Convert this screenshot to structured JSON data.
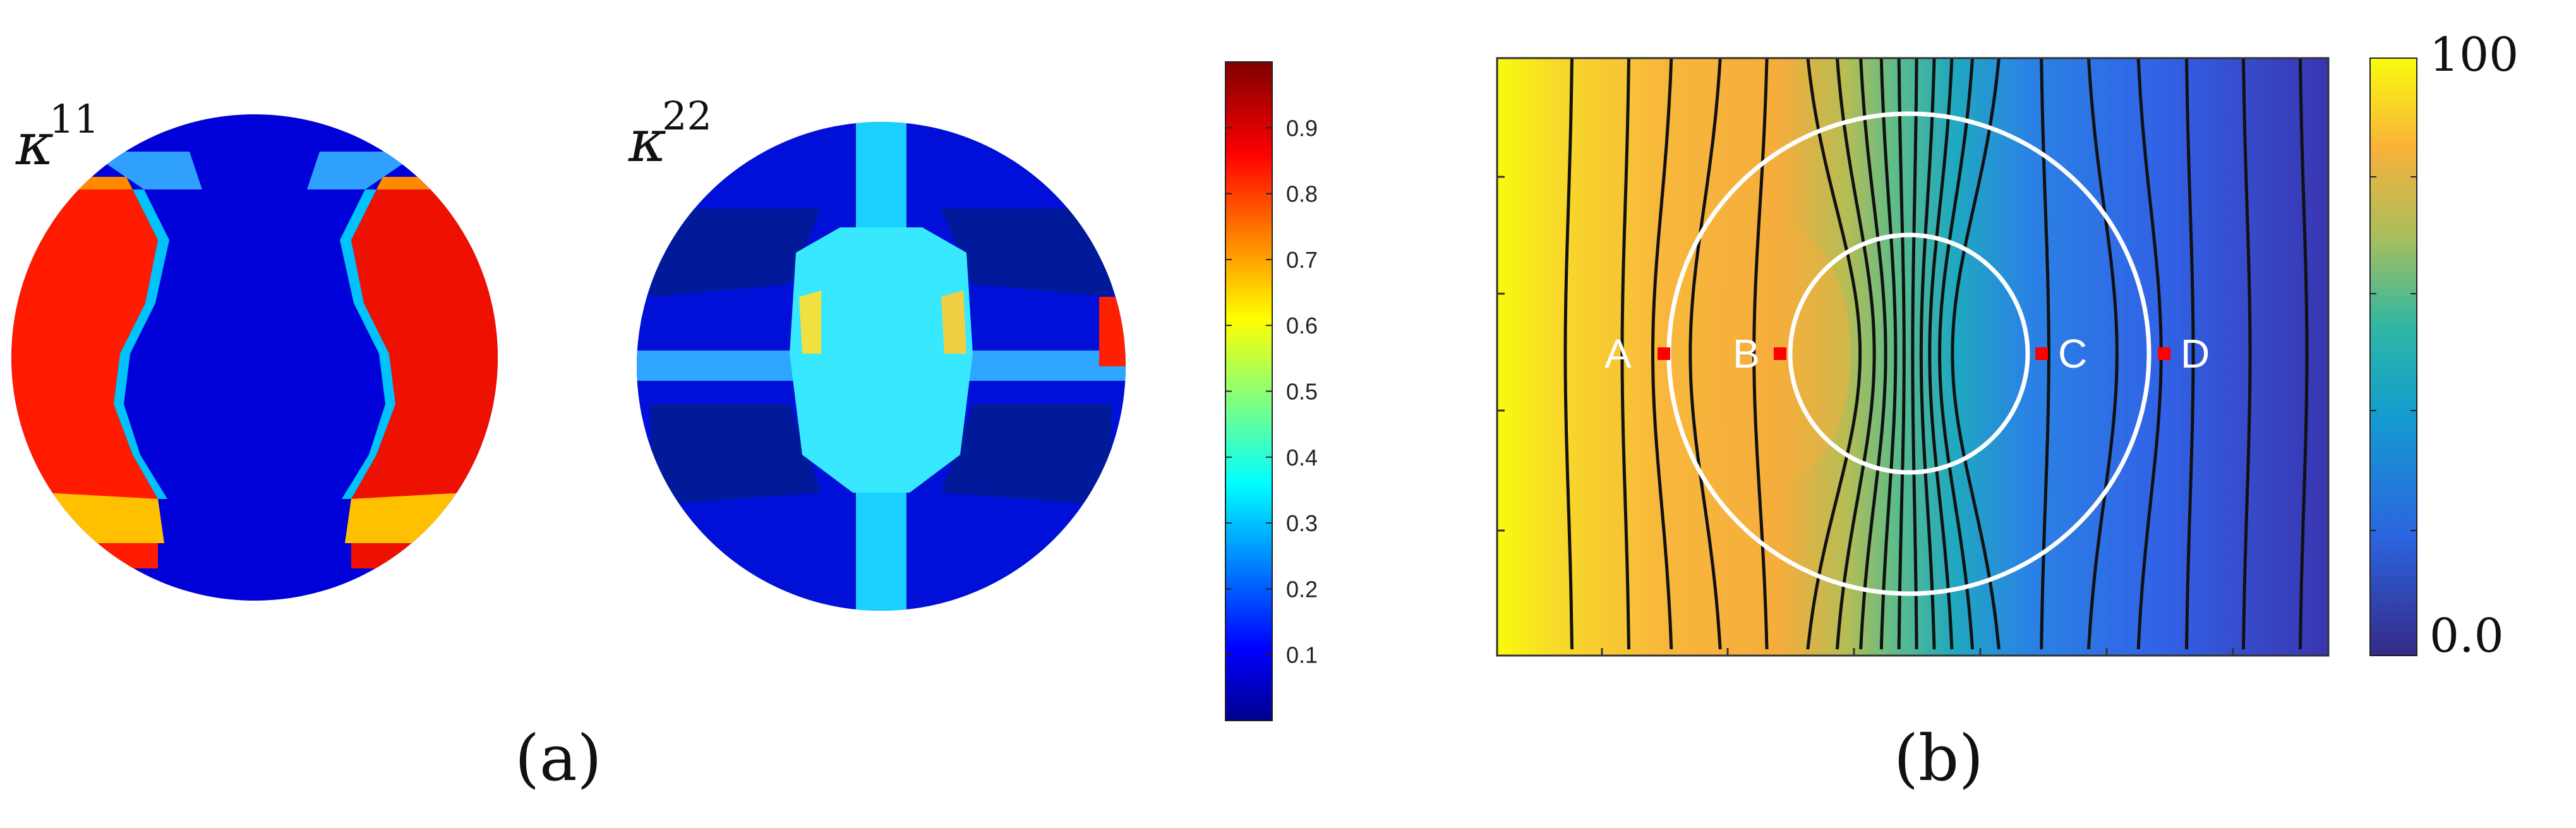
{
  "panel_a": {
    "label": "(a)",
    "maps": [
      {
        "symbol": "κ",
        "superscript": "11"
      },
      {
        "symbol": "κ",
        "superscript": "22"
      }
    ],
    "colorbar": {
      "colormap": "jet",
      "ticks": [
        "0.1",
        "0.2",
        "0.3",
        "0.4",
        "0.5",
        "0.6",
        "0.7",
        "0.8",
        "0.9"
      ],
      "range": [
        0.0,
        1.0
      ]
    }
  },
  "panel_b": {
    "label": "(b)",
    "colormap": "parula",
    "colorbar": {
      "max_label": "100",
      "min_label": "0.0"
    },
    "points": [
      {
        "label": "A",
        "marker_color": "#ff0000"
      },
      {
        "label": "B",
        "marker_color": "#ff0000"
      },
      {
        "label": "C",
        "marker_color": "#ff0000"
      },
      {
        "label": "D",
        "marker_color": "#ff0000"
      }
    ],
    "circle_color": "#ffffff"
  }
}
